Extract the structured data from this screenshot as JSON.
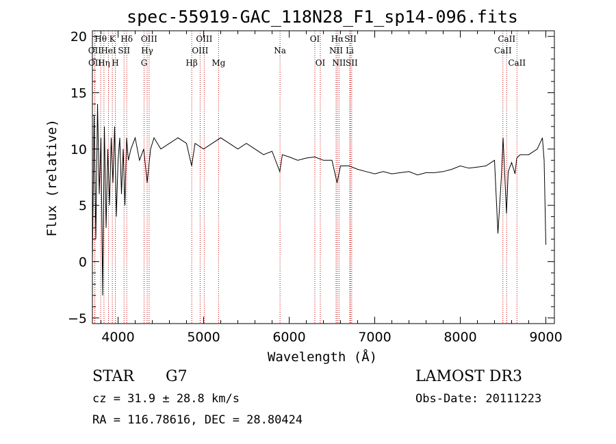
{
  "chart_data": {
    "type": "line",
    "title": "spec-55919-GAC_118N28_F1_sp14-096.fits",
    "xlabel": "Wavelength (Å)",
    "ylabel": "Flux (relative)",
    "xlim": [
      3700,
      9100
    ],
    "ylim": [
      -5.5,
      20.5
    ],
    "xticks": [
      4000,
      5000,
      6000,
      7000,
      8000,
      9000
    ],
    "yticks": [
      -5,
      0,
      5,
      10,
      15,
      20
    ],
    "grid": false,
    "series": [
      {
        "x": [
          3700,
          3720,
          3740,
          3760,
          3780,
          3800,
          3820,
          3840,
          3860,
          3880,
          3900,
          3920,
          3940,
          3960,
          3980,
          4000,
          4020,
          4040,
          4060,
          4080,
          4100,
          4120,
          4150,
          4200,
          4250,
          4300,
          4340,
          4380,
          4420,
          4500,
          4600,
          4700,
          4800,
          4860,
          4900,
          5000,
          5100,
          5200,
          5300,
          5400,
          5500,
          5600,
          5700,
          5800,
          5890,
          5920,
          6000,
          6100,
          6200,
          6300,
          6400,
          6500,
          6560,
          6600,
          6700,
          6800,
          6900,
          7000,
          7100,
          7200,
          7300,
          7400,
          7500,
          7600,
          7700,
          7800,
          7900,
          8000,
          8100,
          8200,
          8300,
          8400,
          8440,
          8480,
          8500,
          8540,
          8560,
          8600,
          8640,
          8660,
          8700,
          8800,
          8900,
          8960,
          8980,
          9000
        ],
        "y": [
          0,
          13,
          2,
          14,
          6,
          11,
          -3,
          12,
          3,
          10,
          5,
          11,
          7,
          12,
          4,
          9,
          11,
          6,
          10,
          5,
          11,
          9,
          10,
          11,
          9,
          10,
          7,
          10,
          11,
          10,
          10.5,
          11,
          10.5,
          8.5,
          10.5,
          10,
          10.5,
          11,
          10.5,
          10,
          10.5,
          10,
          9.5,
          9.8,
          8,
          9.5,
          9.3,
          9,
          9.2,
          9.3,
          9,
          9,
          7,
          8.5,
          8.5,
          8.2,
          8,
          7.8,
          8,
          7.8,
          7.9,
          8,
          7.7,
          7.9,
          7.9,
          8,
          8.2,
          8.5,
          8.3,
          8.4,
          8.5,
          9,
          2.5,
          7.5,
          11,
          4.3,
          8,
          8.8,
          7.8,
          9.2,
          9.5,
          9.5,
          10,
          11,
          9,
          1.5
        ]
      }
    ],
    "lines": [
      {
        "label": "Hθ",
        "x": 3797,
        "row": 0
      },
      {
        "label": "OII",
        "x": 3727,
        "row": 1
      },
      {
        "label": "OII",
        "x": 3729,
        "row": 2
      },
      {
        "label": "K",
        "x": 3933,
        "row": 0
      },
      {
        "label": "HeI",
        "x": 3888,
        "row": 1
      },
      {
        "label": "Hη",
        "x": 3835,
        "row": 2
      },
      {
        "label": "Hδ",
        "x": 4101,
        "row": 0
      },
      {
        "label": "SII",
        "x": 4070,
        "row": 1
      },
      {
        "label": "H",
        "x": 3968,
        "row": 2
      },
      {
        "label": "OIII",
        "x": 4363,
        "row": 0
      },
      {
        "label": "Hγ",
        "x": 4340,
        "row": 1
      },
      {
        "label": "G",
        "x": 4304,
        "row": 2
      },
      {
        "label": "OIII",
        "x": 5007,
        "row": 0
      },
      {
        "label": "OIII",
        "x": 4959,
        "row": 1
      },
      {
        "label": "Hβ",
        "x": 4861,
        "row": 2
      },
      {
        "label": "Mg",
        "x": 5175,
        "row": 2
      },
      {
        "label": "Na",
        "x": 5893,
        "row": 1
      },
      {
        "label": "OI",
        "x": 6300,
        "row": 0
      },
      {
        "label": "OI",
        "x": 6364,
        "row": 2
      },
      {
        "label": "Hα",
        "x": 6563,
        "row": 0
      },
      {
        "label": "NII",
        "x": 6548,
        "row": 1
      },
      {
        "label": "NII",
        "x": 6583,
        "row": 2
      },
      {
        "label": "SII",
        "x": 6716,
        "row": 0
      },
      {
        "label": "Li",
        "x": 6708,
        "row": 1
      },
      {
        "label": "SII",
        "x": 6731,
        "row": 2
      },
      {
        "label": "CaII",
        "x": 8542,
        "row": 0
      },
      {
        "label": "CaII",
        "x": 8498,
        "row": 1
      },
      {
        "label": "CaII",
        "x": 8662,
        "row": 2
      }
    ]
  },
  "info": {
    "class": "STAR",
    "subclass": "G7",
    "survey": "LAMOST DR3",
    "cz": "cz = 31.9 ± 28.8 km/s",
    "obsdate": "Obs-Date: 20111223",
    "radec": "RA = 116.78616, DEC =  28.80424"
  }
}
